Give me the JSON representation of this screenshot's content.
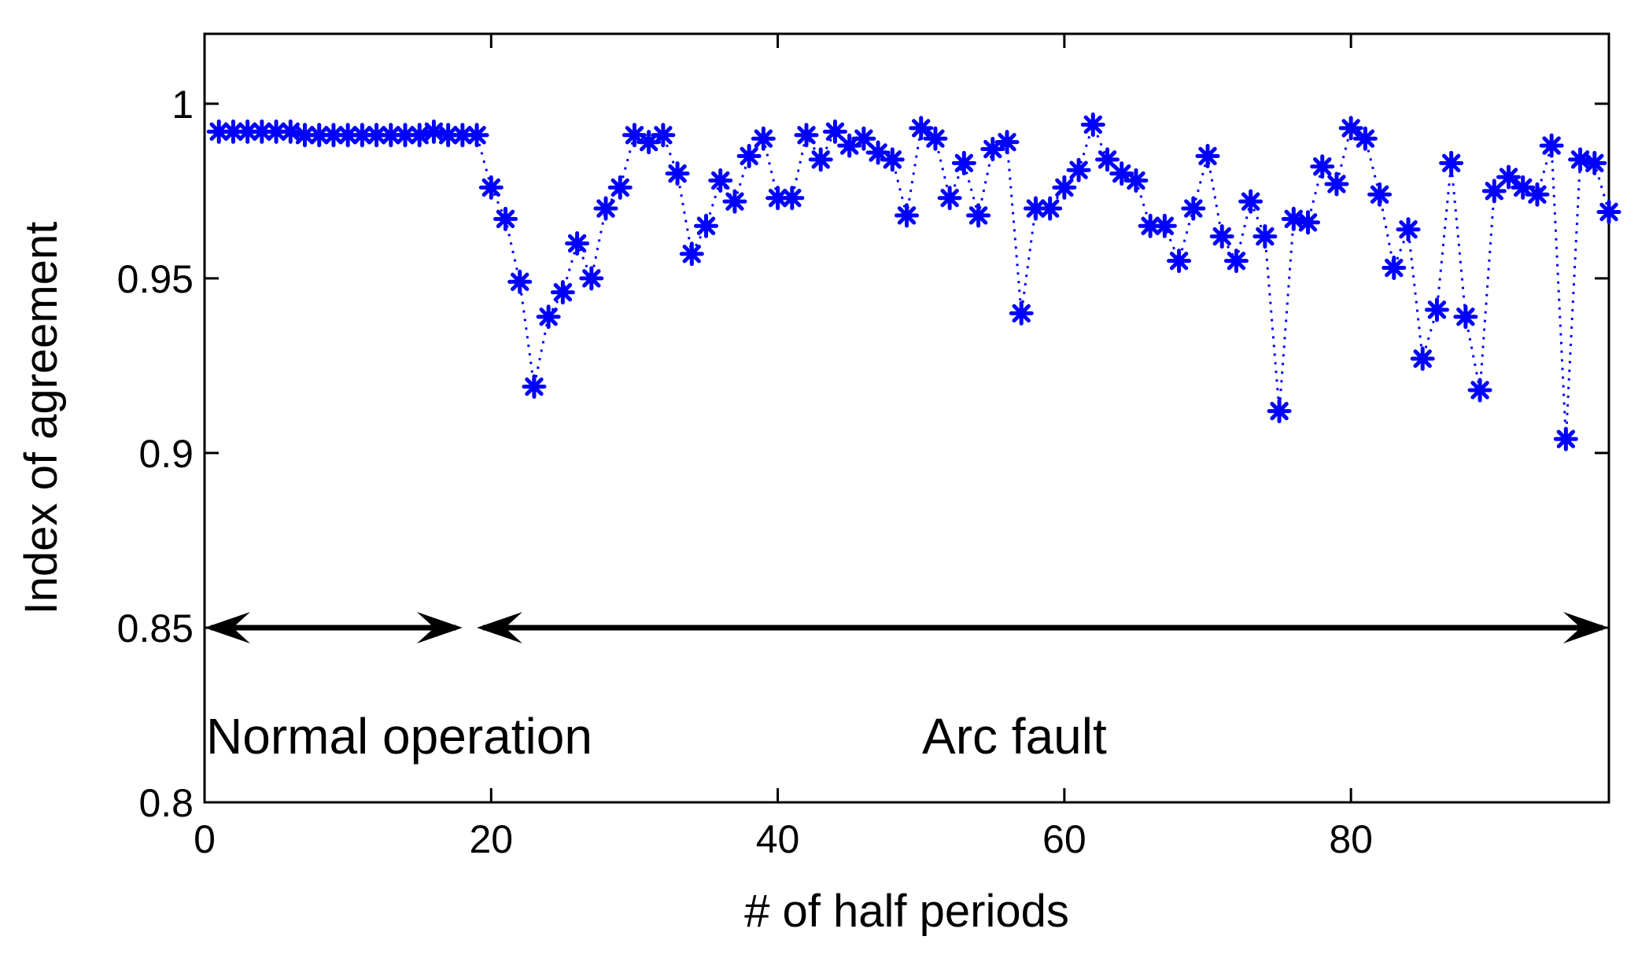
{
  "chart_data": {
    "type": "scatter",
    "title": "",
    "xlabel": "# of half periods",
    "ylabel": "Index of agreement",
    "xlim": [
      0,
      98
    ],
    "ylim": [
      0.8,
      1.02
    ],
    "xticks": [
      0,
      20,
      40,
      60,
      80
    ],
    "xtick_labels": [
      "0",
      "20",
      "40",
      "60",
      "80"
    ],
    "yticks": [
      0.8,
      0.85,
      0.9,
      0.95,
      1
    ],
    "ytick_labels": [
      "0.8",
      "0.85",
      "0.9",
      "0.95",
      "1"
    ],
    "grid": false,
    "series": [
      {
        "name": "Index of agreement",
        "marker": "asterisk",
        "line_style": "dotted",
        "color": "#0000ff",
        "x": [
          1,
          2,
          3,
          4,
          5,
          6,
          7,
          8,
          9,
          10,
          11,
          12,
          13,
          14,
          15,
          16,
          17,
          18,
          19,
          20,
          21,
          22,
          23,
          24,
          25,
          26,
          27,
          28,
          29,
          30,
          31,
          32,
          33,
          34,
          35,
          36,
          37,
          38,
          39,
          40,
          41,
          42,
          43,
          44,
          45,
          46,
          47,
          48,
          49,
          50,
          51,
          52,
          53,
          54,
          55,
          56,
          57,
          58,
          59,
          60,
          61,
          62,
          63,
          64,
          65,
          66,
          67,
          68,
          69,
          70,
          71,
          72,
          73,
          74,
          75,
          76,
          77,
          78,
          79,
          80,
          81,
          82,
          83,
          84,
          85,
          86,
          87,
          88,
          89,
          90,
          91,
          92,
          93,
          94,
          95,
          96,
          97,
          98
        ],
        "y": [
          0.992,
          0.992,
          0.992,
          0.992,
          0.992,
          0.992,
          0.991,
          0.991,
          0.991,
          0.991,
          0.991,
          0.991,
          0.991,
          0.991,
          0.991,
          0.992,
          0.991,
          0.991,
          0.991,
          0.976,
          0.967,
          0.949,
          0.919,
          0.939,
          0.946,
          0.96,
          0.95,
          0.97,
          0.976,
          0.991,
          0.989,
          0.991,
          0.98,
          0.957,
          0.965,
          0.978,
          0.972,
          0.985,
          0.99,
          0.973,
          0.973,
          0.991,
          0.984,
          0.992,
          0.988,
          0.99,
          0.986,
          0.984,
          0.968,
          0.993,
          0.99,
          0.973,
          0.983,
          0.968,
          0.987,
          0.989,
          0.94,
          0.97,
          0.97,
          0.976,
          0.981,
          0.994,
          0.984,
          0.98,
          0.978,
          0.965,
          0.965,
          0.955,
          0.97,
          0.985,
          0.962,
          0.955,
          0.972,
          0.962,
          0.912,
          0.967,
          0.966,
          0.982,
          0.977,
          0.993,
          0.99,
          0.974,
          0.953,
          0.964,
          0.927,
          0.941,
          0.983,
          0.939,
          0.918,
          0.975,
          0.979,
          0.976,
          0.974,
          0.988,
          0.904,
          0.984,
          0.983,
          0.969
        ]
      }
    ],
    "annotations": [
      {
        "text": "Normal operation",
        "x_from": 0,
        "x_to": 18,
        "y": 0.85
      },
      {
        "text": "Arc fault",
        "x_from": 19,
        "x_to": 98,
        "y": 0.85
      }
    ]
  }
}
